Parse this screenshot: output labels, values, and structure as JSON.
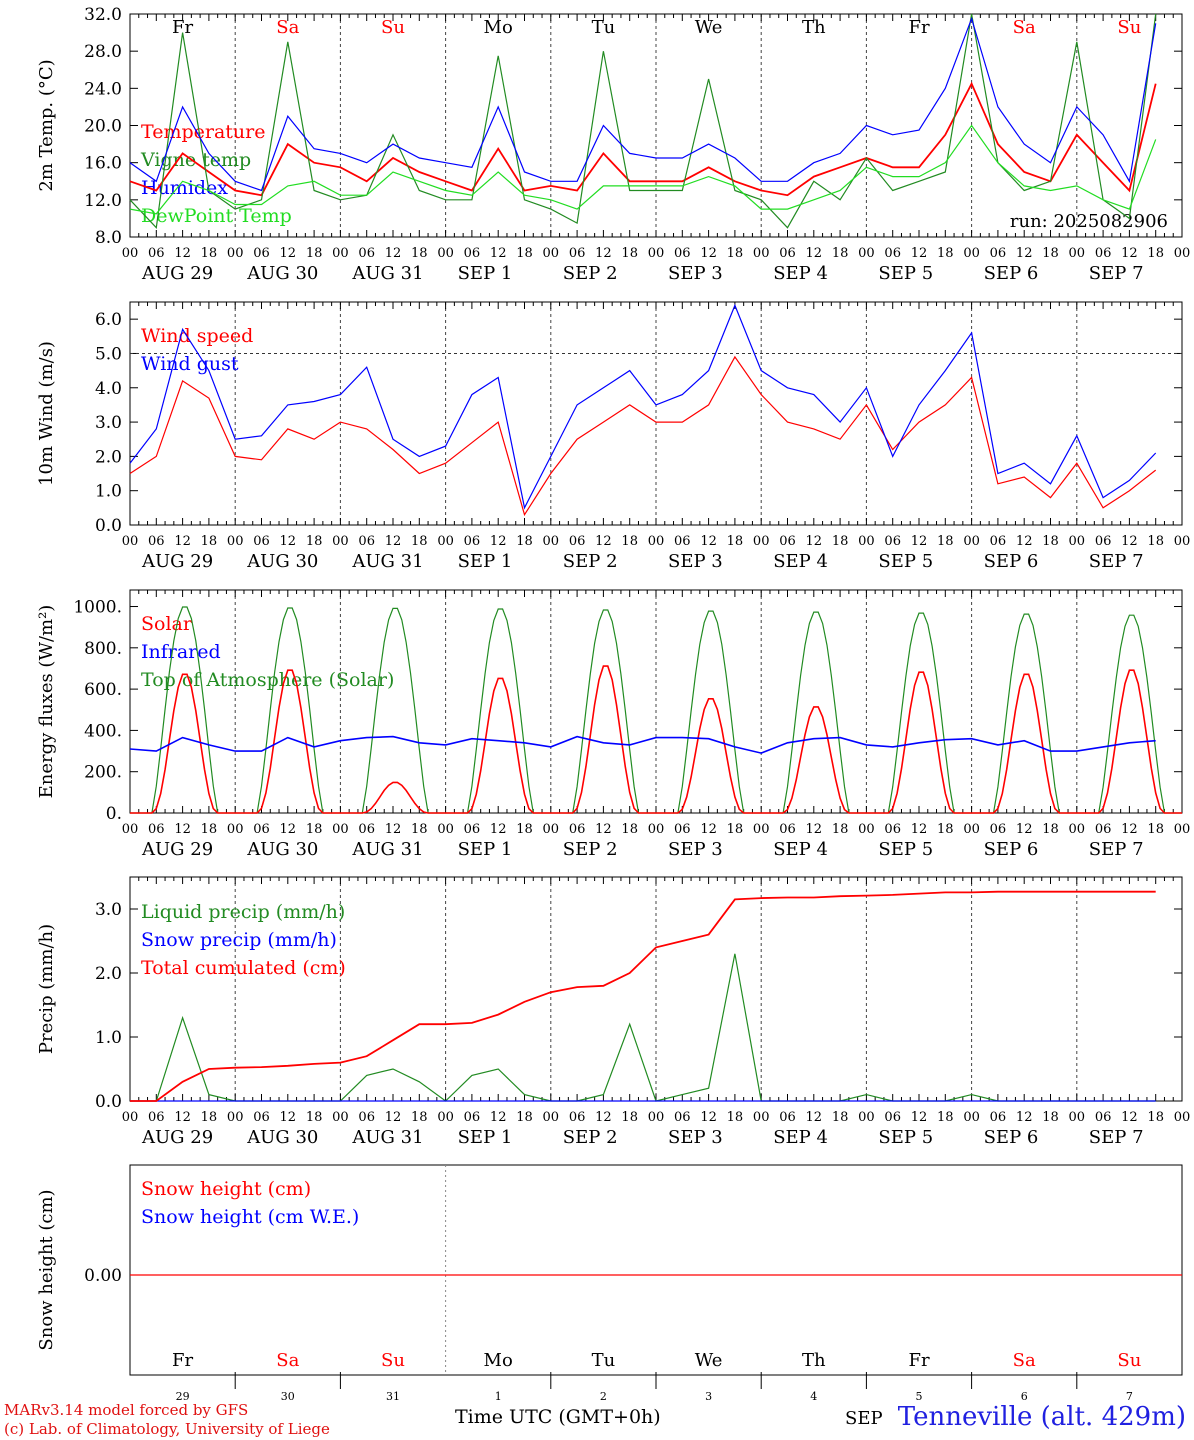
{
  "chart_data": [
    {
      "type": "line",
      "ylabel": "2m Temp. (°C)",
      "ylim": [
        8,
        32
      ],
      "yticks": [
        "8.0",
        "12.0",
        "16.0",
        "20.0",
        "24.0",
        "28.0",
        "32.0"
      ],
      "annotation": "run: 2025082906",
      "x_hours": [
        0,
        6,
        12,
        18,
        24,
        30,
        36,
        42,
        48,
        54,
        60,
        66,
        72,
        78,
        84,
        90,
        96,
        102,
        108,
        114,
        120,
        126,
        132,
        138,
        144,
        150,
        156,
        162,
        168,
        174,
        180,
        186,
        192,
        198,
        204,
        210,
        216,
        222,
        228,
        234
      ],
      "series": [
        {
          "name": "Temperature",
          "color": "#ff0000",
          "values": [
            14,
            13,
            17,
            15,
            13,
            12.5,
            18,
            16,
            15.5,
            14,
            16.5,
            15,
            14,
            13,
            17.5,
            13,
            13.5,
            13,
            17,
            14,
            14,
            14,
            15.5,
            14,
            13,
            12.5,
            14.5,
            15.5,
            16.5,
            15.5,
            15.5,
            19,
            24.5,
            18,
            15,
            14,
            19,
            16,
            13,
            24.5
          ]
        },
        {
          "name": "Vigne temp",
          "color": "#228b22",
          "values": [
            12,
            9,
            30,
            13,
            11,
            12,
            29,
            13,
            12,
            12.5,
            19,
            13,
            12,
            12,
            27.5,
            12,
            11,
            9.5,
            28,
            13,
            13,
            13,
            25,
            13,
            12,
            9,
            14,
            12,
            16.5,
            13,
            14,
            15,
            32,
            16,
            13,
            14,
            29,
            12,
            10,
            32
          ]
        },
        {
          "name": "Humidex",
          "color": "#0000ff",
          "values": [
            16,
            14,
            22,
            17,
            14,
            13,
            21,
            17.5,
            17,
            16,
            18,
            16.5,
            16,
            15.5,
            22,
            15,
            14,
            14,
            20,
            17,
            16.5,
            16.5,
            18,
            16.5,
            14,
            14,
            16,
            17,
            20,
            19,
            19.5,
            24,
            31.5,
            22,
            18,
            16,
            22,
            19,
            14,
            31
          ]
        },
        {
          "name": "DewPoint Temp",
          "color": "#22dd22",
          "values": [
            11,
            10.5,
            14,
            13,
            11.5,
            11.5,
            13.5,
            14,
            12.5,
            12.5,
            15,
            14,
            13,
            12.5,
            15,
            12.5,
            12,
            11,
            13.5,
            13.5,
            13.5,
            13.5,
            14.5,
            13.5,
            11,
            11,
            12,
            13,
            15.5,
            14.5,
            14.5,
            16,
            20,
            16,
            13.5,
            13,
            13.5,
            12,
            11,
            18.5
          ]
        }
      ]
    },
    {
      "type": "line",
      "ylabel": "10m Wind (m/s)",
      "ylim": [
        0,
        6.5
      ],
      "yticks": [
        "0.0",
        "1.0",
        "2.0",
        "3.0",
        "4.0",
        "5.0",
        "6.0"
      ],
      "reference_line": 5.0,
      "x_hours": [
        0,
        6,
        12,
        18,
        24,
        30,
        36,
        42,
        48,
        54,
        60,
        66,
        72,
        78,
        84,
        90,
        96,
        102,
        108,
        114,
        120,
        126,
        132,
        138,
        144,
        150,
        156,
        162,
        168,
        174,
        180,
        186,
        192,
        198,
        204,
        210,
        216,
        222,
        228,
        234
      ],
      "series": [
        {
          "name": "Wind speed",
          "color": "#ff0000",
          "values": [
            1.5,
            2,
            4.2,
            3.7,
            2,
            1.9,
            2.8,
            2.5,
            3,
            2.8,
            2.2,
            1.5,
            1.8,
            2.4,
            3,
            0.3,
            1.5,
            2.5,
            3,
            3.5,
            3,
            3,
            3.5,
            4.9,
            3.8,
            3,
            2.8,
            2.5,
            3.5,
            2.2,
            3,
            3.5,
            4.3,
            1.2,
            1.4,
            0.8,
            1.8,
            0.5,
            1,
            1.6
          ]
        },
        {
          "name": "Wind gust",
          "color": "#0000ff",
          "values": [
            1.8,
            2.8,
            5.7,
            4.5,
            2.5,
            2.6,
            3.5,
            3.6,
            3.8,
            4.6,
            2.5,
            2,
            2.3,
            3.8,
            4.3,
            0.5,
            2,
            3.5,
            4,
            4.5,
            3.5,
            3.8,
            4.5,
            6.4,
            4.5,
            4,
            3.8,
            3,
            4,
            2,
            3.5,
            4.5,
            5.6,
            1.5,
            1.8,
            1.2,
            2.6,
            0.8,
            1.3,
            2.1
          ]
        }
      ]
    },
    {
      "type": "line",
      "ylabel": "Energy fluxes (W/m²)",
      "ylim": [
        0,
        1080
      ],
      "yticks": [
        "0.",
        "200.",
        "400.",
        "600.",
        "800.",
        "1000."
      ],
      "day_peaks": {
        "toa_max": [
          1005,
          1000,
          998,
          995,
          990,
          985,
          980,
          975,
          970,
          965
        ],
        "solar_max": [
          680,
          700,
          150,
          660,
          720,
          560,
          520,
          690,
          680,
          700
        ]
      },
      "series": [
        {
          "name": "Solar",
          "color": "#ff0000"
        },
        {
          "name": "Infrared",
          "color": "#0000ff",
          "values": [
            310,
            300,
            365,
            330,
            300,
            300,
            365,
            320,
            350,
            365,
            370,
            340,
            330,
            360,
            350,
            340,
            320,
            370,
            340,
            330,
            365,
            365,
            360,
            320,
            290,
            340,
            360,
            365,
            330,
            320,
            340,
            355,
            360,
            330,
            350,
            300,
            300,
            320,
            340,
            350
          ]
        },
        {
          "name": "Top of Atmosphere (Solar)",
          "color": "#228b22"
        }
      ]
    },
    {
      "type": "line",
      "ylabel": "Precip (mm/h)",
      "ylim": [
        0,
        3.5
      ],
      "yticks": [
        "0.0",
        "1.0",
        "2.0",
        "3.0"
      ],
      "x_hours": [
        0,
        6,
        12,
        18,
        24,
        30,
        36,
        42,
        48,
        54,
        60,
        66,
        72,
        78,
        84,
        90,
        96,
        102,
        108,
        114,
        120,
        126,
        132,
        138,
        144,
        150,
        156,
        162,
        168,
        174,
        180,
        186,
        192,
        198,
        204,
        210,
        216,
        222,
        228,
        234
      ],
      "series": [
        {
          "name": "Liquid precip (mm/h)",
          "color": "#228b22",
          "values": [
            0,
            0,
            1.3,
            0.1,
            0,
            0,
            0,
            0,
            0,
            0.4,
            0.5,
            0.3,
            0,
            0.4,
            0.5,
            0.1,
            0,
            0,
            0.1,
            1.2,
            0,
            0.1,
            0.2,
            2.3,
            0,
            0,
            0,
            0,
            0.1,
            0,
            0,
            0,
            0.1,
            0,
            0,
            0,
            0,
            0,
            0,
            0
          ]
        },
        {
          "name": "Snow precip (mm/h)",
          "color": "#0000ff",
          "values": [
            0,
            0,
            0,
            0,
            0,
            0,
            0,
            0,
            0,
            0,
            0,
            0,
            0,
            0,
            0,
            0,
            0,
            0,
            0,
            0,
            0,
            0,
            0,
            0,
            0,
            0,
            0,
            0,
            0,
            0,
            0,
            0,
            0,
            0,
            0,
            0,
            0,
            0,
            0,
            0
          ]
        },
        {
          "name": "Total cumulated (cm)",
          "color": "#ff0000",
          "values": [
            0,
            0,
            0.3,
            0.5,
            0.52,
            0.53,
            0.55,
            0.58,
            0.6,
            0.7,
            0.95,
            1.2,
            1.2,
            1.22,
            1.35,
            1.55,
            1.7,
            1.78,
            1.8,
            2.0,
            2.4,
            2.5,
            2.6,
            3.15,
            3.17,
            3.18,
            3.18,
            3.2,
            3.21,
            3.22,
            3.24,
            3.26,
            3.26,
            3.27,
            3.27,
            3.27,
            3.27,
            3.27,
            3.27,
            3.27
          ]
        }
      ]
    },
    {
      "type": "line",
      "ylabel": "Snow height (cm)",
      "yticks": [
        "0.00"
      ],
      "series": [
        {
          "name": "Snow height (cm)",
          "color": "#ff0000",
          "values": [
            0,
            0
          ]
        },
        {
          "name": "Snow height (cm W.E.)",
          "color": "#0000ff",
          "values": [
            0,
            0
          ]
        }
      ]
    }
  ],
  "axis": {
    "hour_ticks": [
      "00",
      "06",
      "12",
      "18"
    ],
    "end_tick": "00",
    "dates": [
      "AUG 29",
      "AUG 30",
      "AUG 31",
      "SEP  1",
      "SEP  2",
      "SEP  3",
      "SEP  4",
      "SEP  5",
      "SEP  6",
      "SEP  7"
    ],
    "weekdays": [
      {
        "label": "Fr",
        "color": "#000000"
      },
      {
        "label": "Sa",
        "color": "#ff0000"
      },
      {
        "label": "Su",
        "color": "#ff0000"
      },
      {
        "label": "Mo",
        "color": "#000000"
      },
      {
        "label": "Tu",
        "color": "#000000"
      },
      {
        "label": "We",
        "color": "#000000"
      },
      {
        "label": "Th",
        "color": "#000000"
      },
      {
        "label": "Fr",
        "color": "#000000"
      },
      {
        "label": "Sa",
        "color": "#ff0000"
      },
      {
        "label": "Su",
        "color": "#ff0000"
      }
    ],
    "day_numbers": [
      "29",
      "30",
      "31",
      "1",
      "2",
      "3",
      "4",
      "5",
      "6",
      "7"
    ],
    "month_label": "SEP"
  },
  "footer": {
    "credit_line1": "MARv3.14 model forced by GFS",
    "credit_line2": "(c) Lab. of Climatology, University of Liege",
    "xlabel": "Time UTC (GMT+0h)",
    "station": "Tenneville (alt. 429m)"
  }
}
